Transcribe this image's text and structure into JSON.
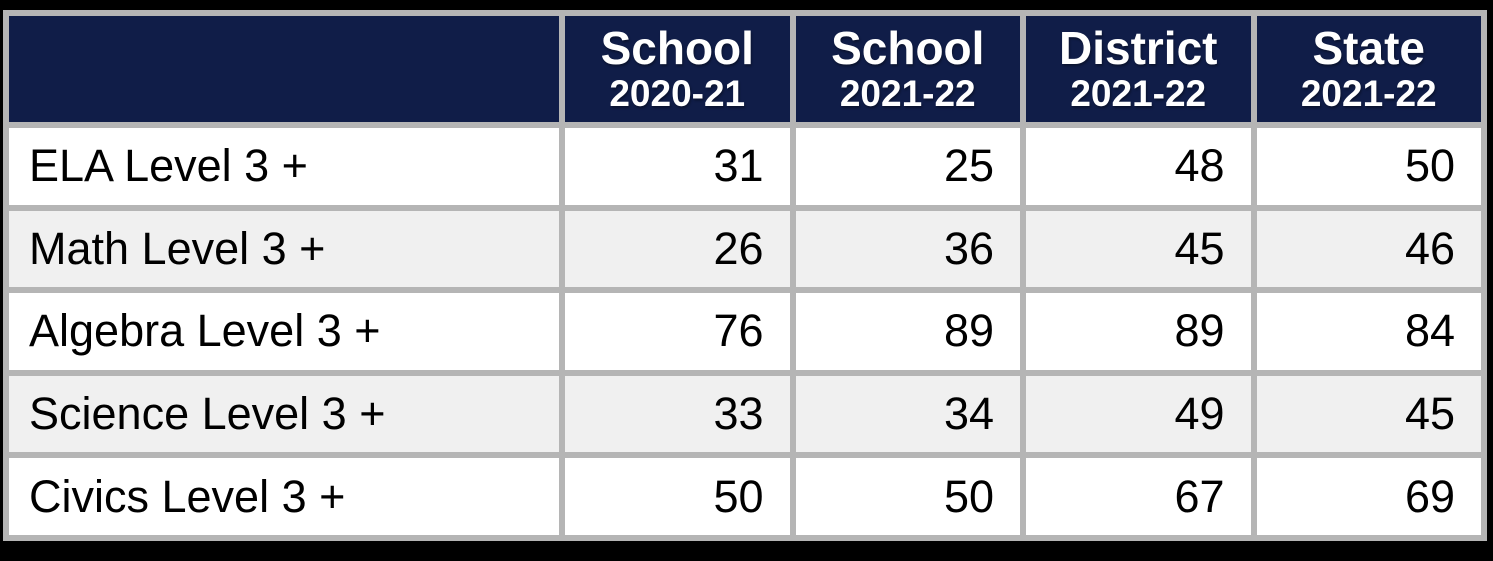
{
  "chart_data": {
    "type": "table",
    "header": {
      "corner": "",
      "cols": [
        {
          "label": "School",
          "period": "2020-21"
        },
        {
          "label": "School",
          "period": "2021-22"
        },
        {
          "label": "District",
          "period": "2021-22"
        },
        {
          "label": "State",
          "period": "2021-22"
        }
      ]
    },
    "rows": [
      {
        "label": "ELA Level 3 +",
        "values": [
          "31",
          "25",
          "48",
          "50"
        ]
      },
      {
        "label": "Math Level 3 +",
        "values": [
          "26",
          "36",
          "45",
          "46"
        ]
      },
      {
        "label": "Algebra Level 3 +",
        "values": [
          "76",
          "89",
          "89",
          "84"
        ]
      },
      {
        "label": "Science Level 3 +",
        "values": [
          "33",
          "34",
          "49",
          "45"
        ]
      },
      {
        "label": "Civics Level 3 +",
        "values": [
          "50",
          "50",
          "67",
          "69"
        ]
      }
    ]
  },
  "colors": {
    "header_bg": "#101d48",
    "header_text": "#ffffff",
    "row_bg": "#ffffff",
    "row_alt_bg": "#f0f0f0",
    "grid_border": "#b5b5b5",
    "outer_frame": "#000000",
    "body_text": "#000000"
  }
}
